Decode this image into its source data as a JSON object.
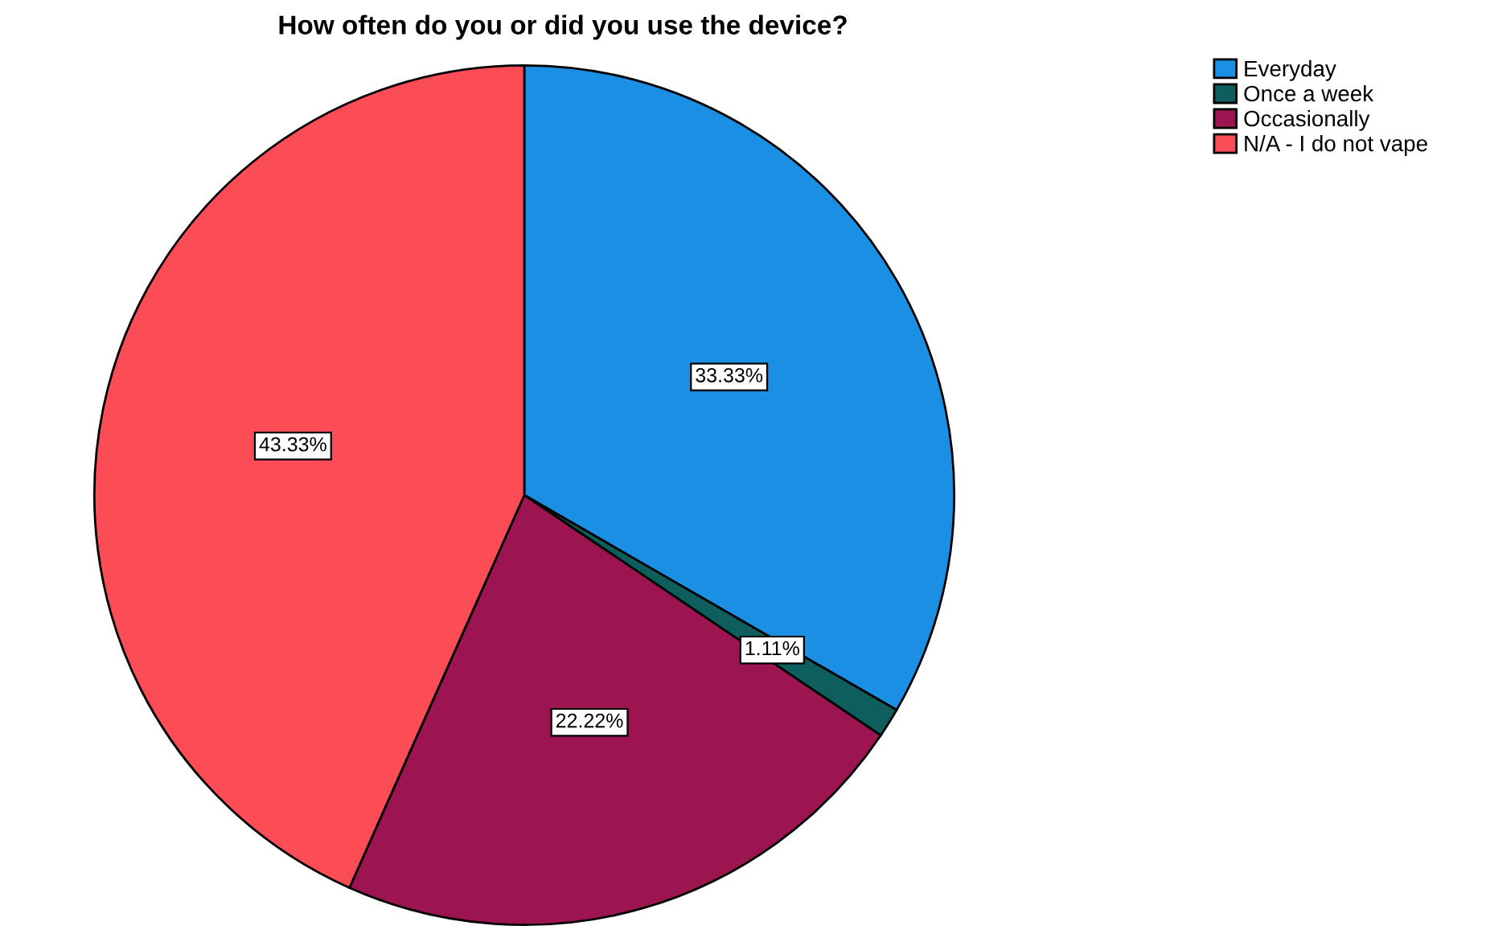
{
  "chart_data": {
    "type": "pie",
    "title": "How often do you or did you use the device?",
    "categories": [
      "Everyday",
      "Once a week",
      "Occasionally",
      "N/A - I do not vape"
    ],
    "values": [
      33.33,
      1.11,
      22.22,
      43.33
    ],
    "colors": [
      "#1a8fe3",
      "#0e5e5e",
      "#9c1550",
      "#fc4d56"
    ],
    "value_labels": [
      "33.33%",
      "1.11%",
      "22.22%",
      "43.33%"
    ],
    "legend": "top right"
  }
}
